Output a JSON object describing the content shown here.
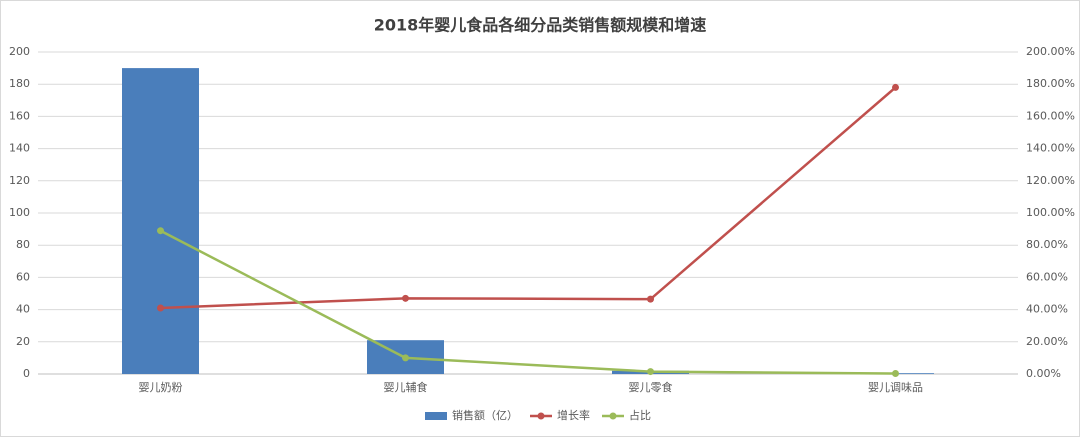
{
  "chart_data": {
    "type": "bar",
    "title": "2018年婴儿食品各细分品类销售额规模和增速",
    "categories": [
      "婴儿奶粉",
      "婴儿辅食",
      "婴儿零食",
      "婴儿调味品"
    ],
    "series": [
      {
        "name": "销售额（亿）",
        "type": "bar",
        "color": "#4a7ebb",
        "values": [
          190,
          21,
          2,
          0.5
        ]
      },
      {
        "name": "增长率",
        "type": "line",
        "axis": "y2",
        "color": "#c0504d",
        "values": [
          41,
          47,
          46.5,
          178
        ]
      },
      {
        "name": "占比",
        "type": "line",
        "axis": "y2",
        "color": "#9bbb59",
        "values": [
          89,
          10,
          1.5,
          0.3
        ]
      }
    ],
    "ylim": [
      0,
      200
    ],
    "yticks": [
      0,
      20,
      40,
      60,
      80,
      100,
      120,
      140,
      160,
      180,
      200
    ],
    "y2lim": [
      0,
      200
    ],
    "y2ticks": [
      {
        "value": 0,
        "label": "0.00%"
      },
      {
        "value": 20,
        "label": "20.00%"
      },
      {
        "value": 40,
        "label": "40.00%"
      },
      {
        "value": 60,
        "label": "60.00%"
      },
      {
        "value": 80,
        "label": "80.00%"
      },
      {
        "value": 100,
        "label": "100.00%"
      },
      {
        "value": 120,
        "label": "120.00%"
      },
      {
        "value": 140,
        "label": "140.00%"
      },
      {
        "value": 160,
        "label": "160.00%"
      },
      {
        "value": 180,
        "label": "180.00%"
      },
      {
        "value": 200,
        "label": "200.00%"
      }
    ],
    "grid": true
  }
}
